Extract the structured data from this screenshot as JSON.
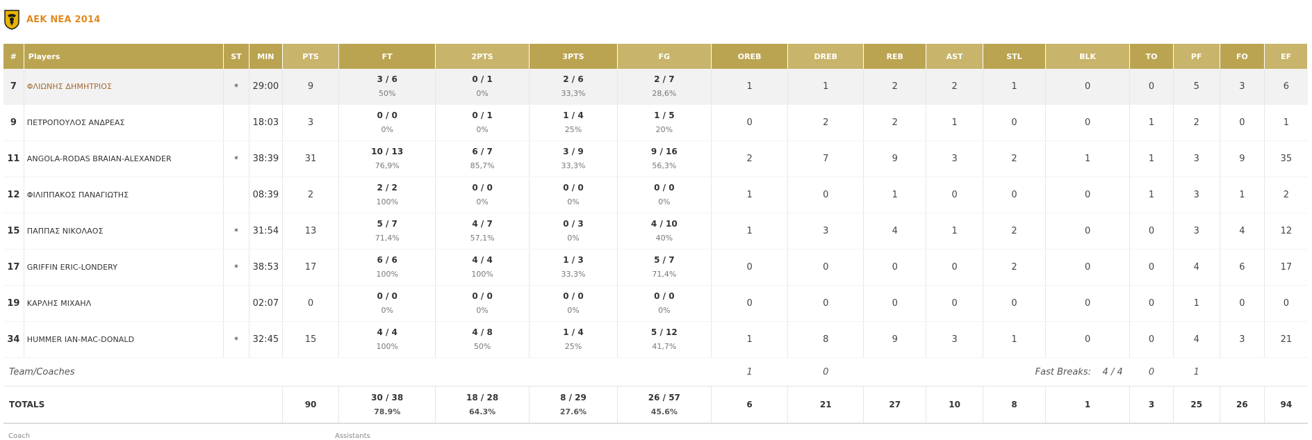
{
  "team": {
    "name": "AEK NEA 2014",
    "logo_icon": "aek-eagle-logo-icon"
  },
  "colors": {
    "header": "#bba451",
    "header_alt": "#c8b46a",
    "team_name": "#e08a1e",
    "player_link": "#a3692e"
  },
  "columns": [
    "#",
    "Players",
    "ST",
    "MIN",
    "PTS",
    "FT",
    "2PTS",
    "3PTS",
    "FG",
    "OREB",
    "DREB",
    "REB",
    "AST",
    "STL",
    "BLK",
    "TO",
    "PF",
    "FO",
    "EF"
  ],
  "players": [
    {
      "num": "7",
      "name": "ΦΛΙΩΝΗΣ ΔΗΜΗΤΡΙΟΣ",
      "link": true,
      "st": "*",
      "min": "29:00",
      "pts": "9",
      "ft": "3 / 6",
      "ft_pct": "50%",
      "p2": "0 / 1",
      "p2_pct": "0%",
      "p3": "2 / 6",
      "p3_pct": "33,3%",
      "fg": "2 / 7",
      "fg_pct": "28,6%",
      "oreb": "1",
      "dreb": "1",
      "reb": "2",
      "ast": "2",
      "stl": "1",
      "blk": "0",
      "to": "0",
      "pf": "5",
      "fo": "3",
      "ef": "6"
    },
    {
      "num": "9",
      "name": "ΠΕΤΡΟΠΟΥΛΟΣ ΑΝΔΡΕΑΣ",
      "link": false,
      "st": "",
      "min": "18:03",
      "pts": "3",
      "ft": "0 / 0",
      "ft_pct": "0%",
      "p2": "0 / 1",
      "p2_pct": "0%",
      "p3": "1 / 4",
      "p3_pct": "25%",
      "fg": "1 / 5",
      "fg_pct": "20%",
      "oreb": "0",
      "dreb": "2",
      "reb": "2",
      "ast": "1",
      "stl": "0",
      "blk": "0",
      "to": "1",
      "pf": "2",
      "fo": "0",
      "ef": "1"
    },
    {
      "num": "11",
      "name": "ANGOLA-RODAS BRAIAN-ALEXANDER",
      "link": false,
      "st": "*",
      "min": "38:39",
      "pts": "31",
      "ft": "10 / 13",
      "ft_pct": "76,9%",
      "p2": "6 / 7",
      "p2_pct": "85,7%",
      "p3": "3 / 9",
      "p3_pct": "33,3%",
      "fg": "9 / 16",
      "fg_pct": "56,3%",
      "oreb": "2",
      "dreb": "7",
      "reb": "9",
      "ast": "3",
      "stl": "2",
      "blk": "1",
      "to": "1",
      "pf": "3",
      "fo": "9",
      "ef": "35"
    },
    {
      "num": "12",
      "name": "ΦΙΛΙΠΠΑΚΟΣ ΠΑΝΑΓΙΩΤΗΣ",
      "link": false,
      "st": "",
      "min": "08:39",
      "pts": "2",
      "ft": "2 / 2",
      "ft_pct": "100%",
      "p2": "0 / 0",
      "p2_pct": "0%",
      "p3": "0 / 0",
      "p3_pct": "0%",
      "fg": "0 / 0",
      "fg_pct": "0%",
      "oreb": "1",
      "dreb": "0",
      "reb": "1",
      "ast": "0",
      "stl": "0",
      "blk": "0",
      "to": "1",
      "pf": "3",
      "fo": "1",
      "ef": "2"
    },
    {
      "num": "15",
      "name": "ΠΑΠΠΑΣ ΝΙΚΟΛΑΟΣ",
      "link": false,
      "st": "*",
      "min": "31:54",
      "pts": "13",
      "ft": "5 / 7",
      "ft_pct": "71,4%",
      "p2": "4 / 7",
      "p2_pct": "57,1%",
      "p3": "0 / 3",
      "p3_pct": "0%",
      "fg": "4 / 10",
      "fg_pct": "40%",
      "oreb": "1",
      "dreb": "3",
      "reb": "4",
      "ast": "1",
      "stl": "2",
      "blk": "0",
      "to": "0",
      "pf": "3",
      "fo": "4",
      "ef": "12"
    },
    {
      "num": "17",
      "name": "GRIFFIN ERIC-LONDERY",
      "link": false,
      "st": "*",
      "min": "38:53",
      "pts": "17",
      "ft": "6 / 6",
      "ft_pct": "100%",
      "p2": "4 / 4",
      "p2_pct": "100%",
      "p3": "1 / 3",
      "p3_pct": "33,3%",
      "fg": "5 / 7",
      "fg_pct": "71,4%",
      "oreb": "0",
      "dreb": "0",
      "reb": "0",
      "ast": "0",
      "stl": "2",
      "blk": "0",
      "to": "0",
      "pf": "4",
      "fo": "6",
      "ef": "17"
    },
    {
      "num": "19",
      "name": "ΚΑΡΛΗΣ ΜΙΧΑΗΛ",
      "link": false,
      "st": "",
      "min": "02:07",
      "pts": "0",
      "ft": "0 / 0",
      "ft_pct": "0%",
      "p2": "0 / 0",
      "p2_pct": "0%",
      "p3": "0 / 0",
      "p3_pct": "0%",
      "fg": "0 / 0",
      "fg_pct": "0%",
      "oreb": "0",
      "dreb": "0",
      "reb": "0",
      "ast": "0",
      "stl": "0",
      "blk": "0",
      "to": "0",
      "pf": "1",
      "fo": "0",
      "ef": "0"
    },
    {
      "num": "34",
      "name": "HUMMER IAN-MAC-DONALD",
      "link": false,
      "st": "*",
      "min": "32:45",
      "pts": "15",
      "ft": "4 / 4",
      "ft_pct": "100%",
      "p2": "4 / 8",
      "p2_pct": "50%",
      "p3": "1 / 4",
      "p3_pct": "25%",
      "fg": "5 / 12",
      "fg_pct": "41,7%",
      "oreb": "1",
      "dreb": "8",
      "reb": "9",
      "ast": "3",
      "stl": "1",
      "blk": "0",
      "to": "0",
      "pf": "4",
      "fo": "3",
      "ef": "21"
    }
  ],
  "team_coaches": {
    "label": "Team/Coaches",
    "oreb": "1",
    "dreb": "0",
    "fast_breaks_label": "Fast Breaks:",
    "fast_breaks_value": "4 / 4",
    "to": "0",
    "pf": "1"
  },
  "totals": {
    "label": "TOTALS",
    "pts": "90",
    "ft": "30 / 38",
    "ft_pct": "78.9%",
    "p2": "18 / 28",
    "p2_pct": "64.3%",
    "p3": "8 / 29",
    "p3_pct": "27.6%",
    "fg": "26 / 57",
    "fg_pct": "45.6%",
    "oreb": "6",
    "dreb": "21",
    "reb": "27",
    "ast": "10",
    "stl": "8",
    "blk": "1",
    "to": "3",
    "pf": "25",
    "fo": "26",
    "ef": "94"
  },
  "footer": {
    "coach_label": "Coach",
    "assistants_label": "Assistants"
  }
}
